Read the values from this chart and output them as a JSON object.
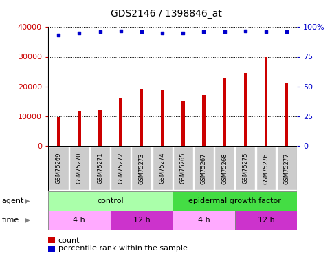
{
  "title": "GDS2146 / 1398846_at",
  "samples": [
    "GSM75269",
    "GSM75270",
    "GSM75271",
    "GSM75272",
    "GSM75273",
    "GSM75274",
    "GSM75265",
    "GSM75267",
    "GSM75268",
    "GSM75275",
    "GSM75276",
    "GSM75277"
  ],
  "counts": [
    9800,
    11500,
    12000,
    16000,
    19000,
    18800,
    15000,
    17200,
    23000,
    24500,
    30000,
    21000
  ],
  "percentiles": [
    93,
    95,
    96,
    97,
    96,
    95,
    95,
    96,
    96,
    97,
    96,
    96
  ],
  "bar_color": "#cc0000",
  "dot_color": "#0000cc",
  "ylim_left": [
    0,
    40000
  ],
  "ylim_right": [
    0,
    100
  ],
  "yticks_left": [
    0,
    10000,
    20000,
    30000,
    40000
  ],
  "yticks_right": [
    0,
    25,
    50,
    75,
    100
  ],
  "yticklabels_left": [
    "0",
    "10000",
    "20000",
    "30000",
    "40000"
  ],
  "yticklabels_right": [
    "0",
    "25",
    "50",
    "75",
    "100%"
  ],
  "agent_groups": [
    {
      "label": "control",
      "start": 0,
      "end": 6,
      "color": "#aaffaa"
    },
    {
      "label": "epidermal growth factor",
      "start": 6,
      "end": 12,
      "color": "#44dd44"
    }
  ],
  "time_groups": [
    {
      "label": "4 h",
      "start": 0,
      "end": 3,
      "color": "#ffaaff"
    },
    {
      "label": "12 h",
      "start": 3,
      "end": 6,
      "color": "#cc33cc"
    },
    {
      "label": "4 h",
      "start": 6,
      "end": 9,
      "color": "#ffaaff"
    },
    {
      "label": "12 h",
      "start": 9,
      "end": 12,
      "color": "#cc33cc"
    }
  ],
  "legend_count_color": "#cc0000",
  "legend_dot_color": "#0000cc",
  "tick_label_color_left": "#cc0000",
  "tick_label_color_right": "#0000cc",
  "sample_box_color": "#cccccc",
  "title_fontsize": 10,
  "axis_fontsize": 8,
  "legend_fontsize": 8,
  "bar_width": 0.15
}
